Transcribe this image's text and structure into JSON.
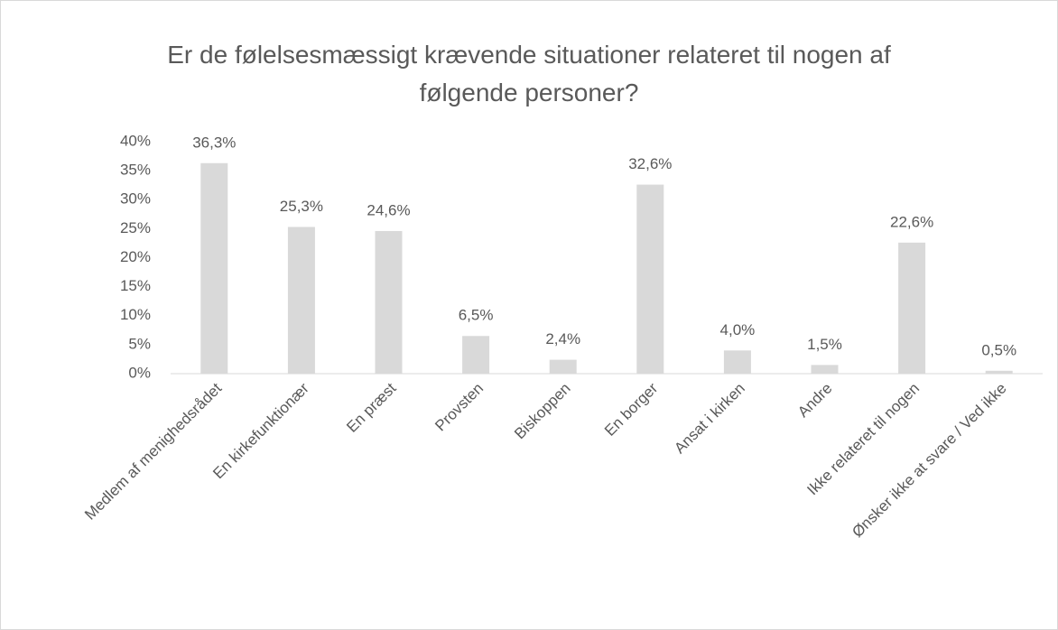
{
  "chart_data": {
    "type": "bar",
    "title": "Er de følelsesmæssigt krævende situationer relateret til nogen af følgende personer?",
    "categories": [
      "Medlem af menighedsrådet",
      "En kirkefunktionær",
      "En præst",
      "Provsten",
      "Biskoppen",
      "En borger",
      "Ansat i kirken",
      "Andre",
      "Ikke relateret til nogen",
      "Ønsker ikke at svare / Ved ikke"
    ],
    "values": [
      36.3,
      25.3,
      24.6,
      6.5,
      2.4,
      32.6,
      4.0,
      1.5,
      22.6,
      0.5
    ],
    "value_labels": [
      "36,3%",
      "25,3%",
      "24,6%",
      "6,5%",
      "2,4%",
      "32,6%",
      "4,0%",
      "1,5%",
      "22,6%",
      "0,5%"
    ],
    "color": "#d9d9d9",
    "ylim": [
      0,
      40
    ],
    "yticks": [
      {
        "value": 0,
        "label": "0%"
      },
      {
        "value": 5,
        "label": "5%"
      },
      {
        "value": 10,
        "label": "10%"
      },
      {
        "value": 15,
        "label": "15%"
      },
      {
        "value": 20,
        "label": "20%"
      },
      {
        "value": 25,
        "label": "25%"
      },
      {
        "value": 30,
        "label": "30%"
      },
      {
        "value": 35,
        "label": "35%"
      },
      {
        "value": 40,
        "label": "40%"
      }
    ],
    "grid": false
  }
}
